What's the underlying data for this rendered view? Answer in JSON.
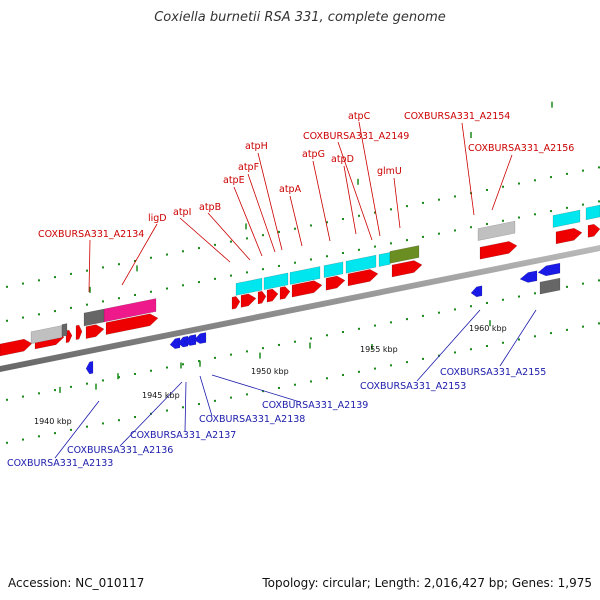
{
  "title": "Coxiella burnetii RSA 331, complete genome",
  "footer": {
    "accession_label": "Accession: NC_010117",
    "summary": "Topology: circular; Length: 2,016,427 bp; Genes: 1,975"
  },
  "colors": {
    "forward_label": "#cc0000",
    "reverse_label": "#1a1aaa",
    "forward_gene": "#ee0000",
    "reverse_gene": "#1a1ae6",
    "atp_cluster": "#00e6ee",
    "magenta_feature": "#ee1a8c",
    "olive_feature": "#6b8e23",
    "light_gray_feature": "#c0c0c0",
    "dark_gray_feature": "#666666",
    "backbone": "#888888",
    "tick_dot": "#1a8a1a"
  },
  "scale_ticks": [
    {
      "label": "1940 kbp"
    },
    {
      "label": "1945 kbp"
    },
    {
      "label": "1950 kbp"
    },
    {
      "label": "1955 kbp"
    },
    {
      "label": "1960 kbp"
    }
  ],
  "forward_labels": [
    {
      "text": "COXBURSA331_A2134"
    },
    {
      "text": "ligD"
    },
    {
      "text": "atpI"
    },
    {
      "text": "atpB"
    },
    {
      "text": "atpE"
    },
    {
      "text": "atpF"
    },
    {
      "text": "atpH"
    },
    {
      "text": "atpA"
    },
    {
      "text": "atpG"
    },
    {
      "text": "COXBURSA331_A2149"
    },
    {
      "text": "atpD"
    },
    {
      "text": "atpC"
    },
    {
      "text": "glmU"
    },
    {
      "text": "COXBURSA331_A2154"
    },
    {
      "text": "COXBURSA331_A2156"
    }
  ],
  "reverse_labels": [
    {
      "text": "COXBURSA331_A2133"
    },
    {
      "text": "COXBURSA331_A2136"
    },
    {
      "text": "COXBURSA331_A2137"
    },
    {
      "text": "COXBURSA331_A2138"
    },
    {
      "text": "COXBURSA331_A2139"
    },
    {
      "text": "COXBURSA331_A2153"
    },
    {
      "text": "COXBURSA331_A2155"
    }
  ]
}
